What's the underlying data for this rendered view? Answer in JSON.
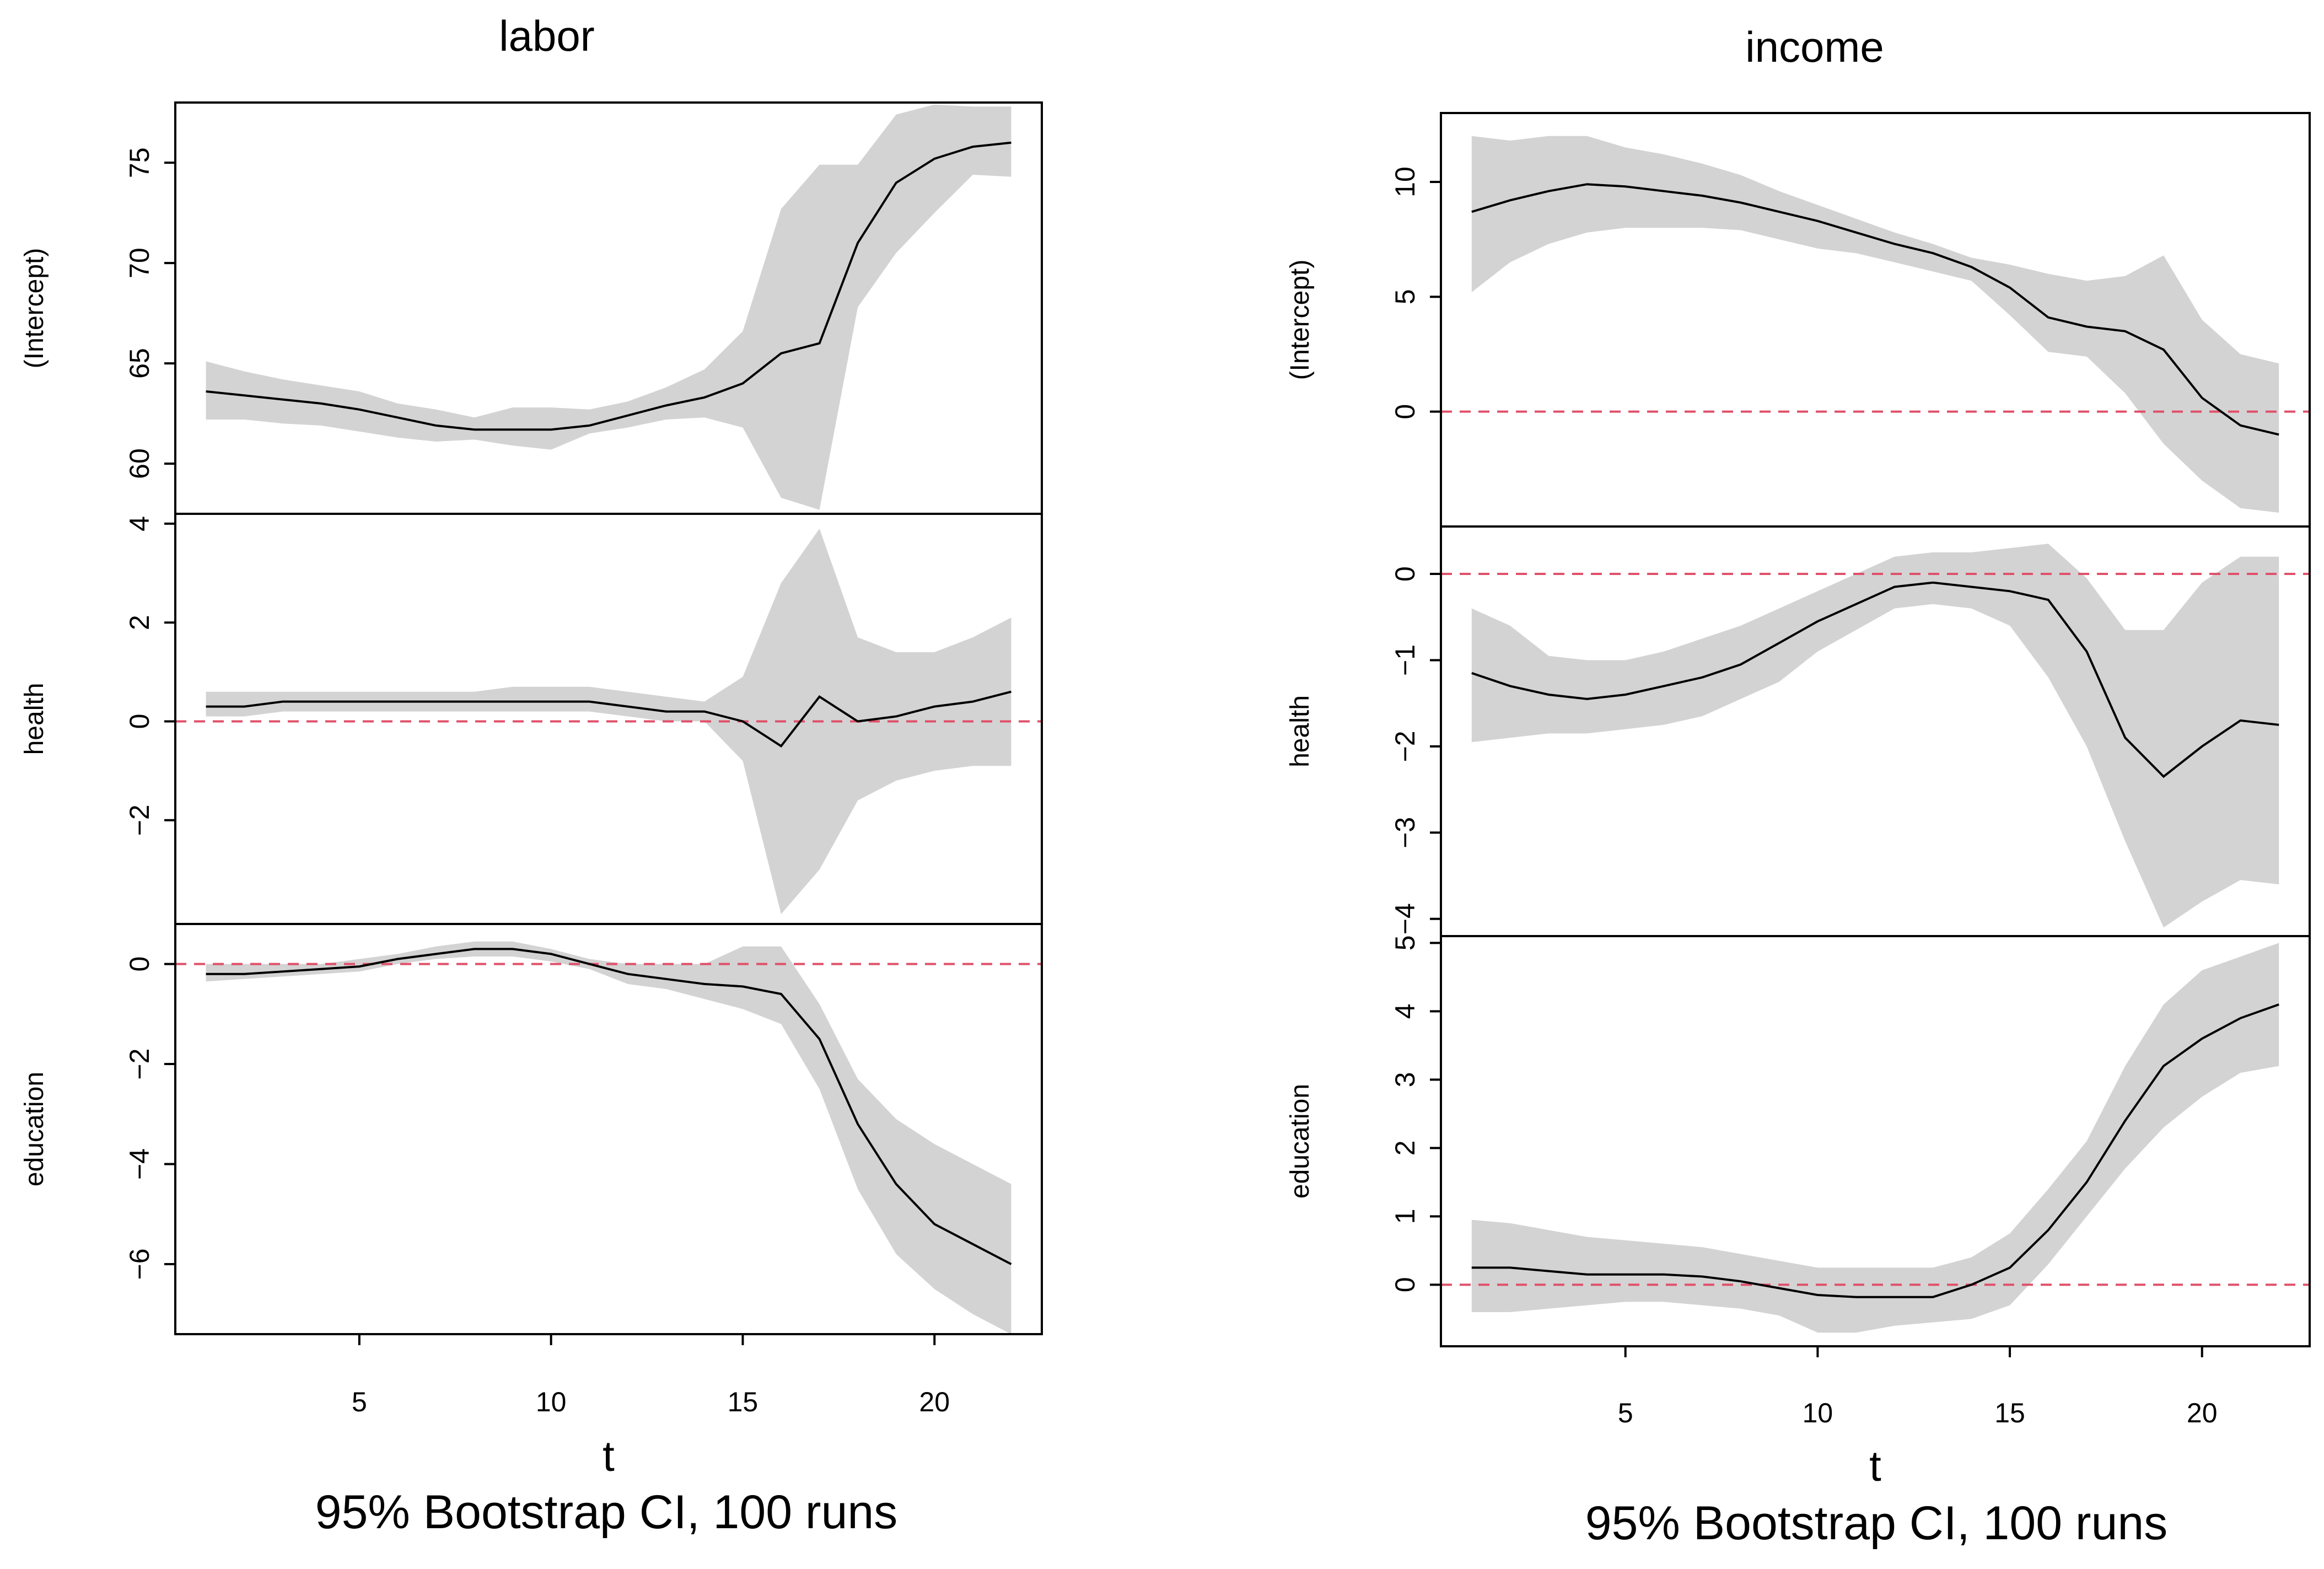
{
  "chart_data": [
    {
      "type": "line",
      "title": "labor",
      "xlabel": "t",
      "subtitle": "95% Bootstrap CI, 100 runs",
      "x": [
        1,
        2,
        3,
        4,
        5,
        6,
        7,
        8,
        9,
        10,
        11,
        12,
        13,
        14,
        15,
        16,
        17,
        18,
        19,
        20,
        21,
        22
      ],
      "xticks": [
        "5",
        "10",
        "15",
        "20"
      ],
      "panels": [
        {
          "name": "(Intercept)",
          "ylim": [
            57.5,
            78
          ],
          "yticks": [
            "60",
            "65",
            "70",
            "75"
          ],
          "ref_line": null,
          "estimate": [
            63.6,
            63.4,
            63.2,
            63.0,
            62.7,
            62.3,
            61.9,
            61.7,
            61.7,
            61.7,
            61.9,
            62.4,
            62.9,
            63.3,
            64.0,
            65.5,
            66.0,
            71.0,
            74.0,
            75.2,
            75.8,
            76.0
          ],
          "lower": [
            62.2,
            62.2,
            62.0,
            61.9,
            61.6,
            61.3,
            61.1,
            61.2,
            60.9,
            60.7,
            61.5,
            61.8,
            62.2,
            62.3,
            61.8,
            58.3,
            57.7,
            67.8,
            70.5,
            72.5,
            74.4,
            74.3
          ],
          "upper": [
            65.1,
            64.6,
            64.2,
            63.9,
            63.6,
            63.0,
            62.7,
            62.3,
            62.8,
            62.8,
            62.7,
            63.1,
            63.8,
            64.7,
            66.6,
            72.7,
            74.9,
            74.9,
            77.4,
            77.9,
            77.8,
            77.8
          ]
        },
        {
          "name": "health",
          "ylim": [
            -4.1,
            4.2
          ],
          "yticks": [
            "4",
            "2",
            "0",
            "−2"
          ],
          "ref_line": 0,
          "estimate": [
            0.3,
            0.3,
            0.4,
            0.4,
            0.4,
            0.4,
            0.4,
            0.4,
            0.4,
            0.4,
            0.4,
            0.3,
            0.2,
            0.2,
            0.0,
            -0.5,
            0.5,
            0.0,
            0.1,
            0.3,
            0.4,
            0.6
          ],
          "lower": [
            0.1,
            0.1,
            0.2,
            0.2,
            0.2,
            0.2,
            0.2,
            0.2,
            0.2,
            0.2,
            0.2,
            0.1,
            0.0,
            0.0,
            -0.8,
            -3.9,
            -3.0,
            -1.6,
            -1.2,
            -1.0,
            -0.9,
            -0.9
          ],
          "upper": [
            0.6,
            0.6,
            0.6,
            0.6,
            0.6,
            0.6,
            0.6,
            0.6,
            0.7,
            0.7,
            0.7,
            0.6,
            0.5,
            0.4,
            0.9,
            2.8,
            3.9,
            1.7,
            1.4,
            1.4,
            1.7,
            2.1
          ]
        },
        {
          "name": "education",
          "ylim": [
            -7.4,
            0.8
          ],
          "yticks": [
            "0",
            "−2",
            "−4",
            "−6"
          ],
          "ref_line": 0,
          "estimate": [
            -0.2,
            -0.2,
            -0.15,
            -0.1,
            -0.05,
            0.1,
            0.2,
            0.3,
            0.3,
            0.2,
            0.0,
            -0.2,
            -0.3,
            -0.4,
            -0.45,
            -0.6,
            -1.5,
            -3.2,
            -4.4,
            -5.2,
            -5.6,
            -6.0
          ],
          "lower": [
            -0.35,
            -0.3,
            -0.25,
            -0.2,
            -0.15,
            0.0,
            0.1,
            0.15,
            0.15,
            0.05,
            -0.1,
            -0.4,
            -0.5,
            -0.7,
            -0.9,
            -1.2,
            -2.5,
            -4.5,
            -5.8,
            -6.5,
            -7.0,
            -7.4
          ],
          "upper": [
            0.0,
            0.0,
            0.0,
            0.0,
            0.1,
            0.2,
            0.35,
            0.45,
            0.45,
            0.3,
            0.1,
            0.0,
            0.0,
            0.0,
            0.35,
            0.35,
            -0.8,
            -2.3,
            -3.1,
            -3.6,
            -4.0,
            -4.4
          ]
        }
      ]
    },
    {
      "type": "line",
      "title": "income",
      "xlabel": "t",
      "subtitle": "95% Bootstrap CI, 100 runs",
      "x": [
        1,
        2,
        3,
        4,
        5,
        6,
        7,
        8,
        9,
        10,
        11,
        12,
        13,
        14,
        15,
        16,
        17,
        18,
        19,
        20,
        21,
        22
      ],
      "xticks": [
        "5",
        "10",
        "15",
        "20"
      ],
      "panels": [
        {
          "name": "(Intercept)",
          "ylim": [
            -5,
            13
          ],
          "yticks": [
            "10",
            "5",
            "0"
          ],
          "ref_line": 0,
          "estimate": [
            8.7,
            9.2,
            9.6,
            9.9,
            9.8,
            9.6,
            9.4,
            9.1,
            8.7,
            8.3,
            7.8,
            7.3,
            6.9,
            6.3,
            5.4,
            4.1,
            3.7,
            3.5,
            2.7,
            0.6,
            -0.6,
            -1.0
          ],
          "lower": [
            5.2,
            6.5,
            7.3,
            7.8,
            8.0,
            8.0,
            8.0,
            7.9,
            7.5,
            7.1,
            6.9,
            6.5,
            6.1,
            5.7,
            4.2,
            2.6,
            2.4,
            0.8,
            -1.4,
            -3.0,
            -4.2,
            -4.4
          ],
          "upper": [
            12.0,
            11.8,
            12.0,
            12.0,
            11.5,
            11.2,
            10.8,
            10.3,
            9.6,
            9.0,
            8.4,
            7.8,
            7.3,
            6.7,
            6.4,
            6.0,
            5.7,
            5.9,
            6.8,
            4.0,
            2.5,
            2.1
          ]
        },
        {
          "name": "health",
          "ylim": [
            -4.2,
            0.55
          ],
          "yticks": [
            "0",
            "−1",
            "−2",
            "−3",
            "−4"
          ],
          "ref_line": 0,
          "estimate": [
            -1.15,
            -1.3,
            -1.4,
            -1.45,
            -1.4,
            -1.3,
            -1.2,
            -1.05,
            -0.8,
            -0.55,
            -0.35,
            -0.15,
            -0.1,
            -0.15,
            -0.2,
            -0.3,
            -0.9,
            -1.9,
            -2.35,
            -2.0,
            -1.7,
            -1.75
          ],
          "lower": [
            -1.95,
            -1.9,
            -1.85,
            -1.85,
            -1.8,
            -1.75,
            -1.65,
            -1.45,
            -1.25,
            -0.9,
            -0.65,
            -0.4,
            -0.35,
            -0.4,
            -0.6,
            -1.2,
            -2.0,
            -3.1,
            -4.1,
            -3.8,
            -3.55,
            -3.6
          ],
          "upper": [
            -0.4,
            -0.6,
            -0.95,
            -1.0,
            -1.0,
            -0.9,
            -0.75,
            -0.6,
            -0.4,
            -0.2,
            0.0,
            0.2,
            0.25,
            0.25,
            0.3,
            0.35,
            -0.05,
            -0.65,
            -0.65,
            -0.1,
            0.2,
            0.2
          ]
        },
        {
          "name": "education",
          "ylim": [
            -0.9,
            5.1
          ],
          "yticks": [
            "5",
            "4",
            "3",
            "2",
            "1",
            "0"
          ],
          "ref_line": 0,
          "estimate": [
            0.25,
            0.25,
            0.2,
            0.15,
            0.15,
            0.15,
            0.12,
            0.05,
            -0.05,
            -0.15,
            -0.18,
            -0.18,
            -0.18,
            0.0,
            0.25,
            0.8,
            1.5,
            2.4,
            3.2,
            3.6,
            3.9,
            4.1
          ],
          "lower": [
            -0.4,
            -0.4,
            -0.35,
            -0.3,
            -0.25,
            -0.25,
            -0.3,
            -0.35,
            -0.45,
            -0.7,
            -0.7,
            -0.6,
            -0.55,
            -0.5,
            -0.3,
            0.3,
            1.0,
            1.7,
            2.3,
            2.75,
            3.1,
            3.2
          ],
          "upper": [
            0.95,
            0.9,
            0.8,
            0.7,
            0.65,
            0.6,
            0.55,
            0.45,
            0.35,
            0.25,
            0.25,
            0.25,
            0.25,
            0.4,
            0.75,
            1.4,
            2.1,
            3.2,
            4.1,
            4.6,
            4.8,
            5.0
          ]
        }
      ]
    }
  ]
}
